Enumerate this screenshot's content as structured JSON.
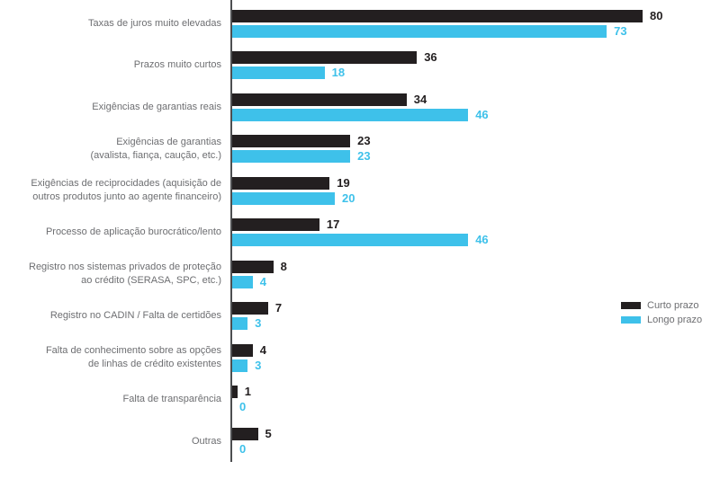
{
  "chart_data": {
    "type": "bar",
    "orientation": "horizontal",
    "title": "",
    "xlabel": "",
    "ylabel": "",
    "xlim": [
      0,
      80
    ],
    "grid": false,
    "legend_position": "right",
    "categories": [
      "Taxas de juros muito elevadas",
      "Prazos muito curtos",
      "Exigências de garantias reais",
      "Exigências de garantias\n(avalista, fiança, caução, etc.)",
      "Exigências de reciprocidades (aquisição de\noutros produtos junto ao agente financeiro)",
      "Processo de aplicação burocrático/lento",
      "Registro nos sistemas privados de proteção\nao crédito (SERASA, SPC, etc.)",
      "Registro no CADIN / Falta de certidões",
      "Falta de conhecimento sobre as opções\nde linhas de crédito existentes",
      "Falta de transparência",
      "Outras"
    ],
    "series": [
      {
        "name": "Curto prazo",
        "color": "#231f20",
        "values": [
          80,
          36,
          34,
          23,
          19,
          17,
          8,
          7,
          4,
          1,
          5
        ]
      },
      {
        "name": "Longo prazo",
        "color": "#3ec1ea",
        "values": [
          73,
          18,
          46,
          23,
          20,
          46,
          4,
          3,
          3,
          0,
          0
        ]
      }
    ]
  },
  "colors": {
    "axis": "#4d4e50",
    "label_text": "#6d6e71"
  }
}
